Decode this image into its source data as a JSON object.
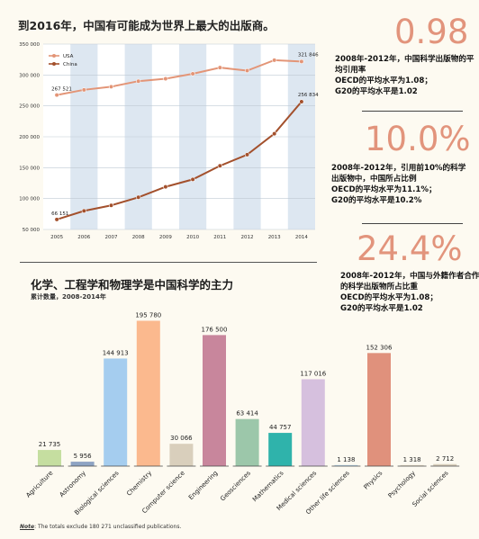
{
  "top_title": "到2016年，中国有可能成为世界上最大的出版商。",
  "stats": [
    {
      "value": "0.98",
      "desc": "2008年-2012年，中国科学出版物的平均引用率\nOECD的平均水平为1.08；\nG20的平均水平是1.02"
    },
    {
      "value": "10.0%",
      "desc": "2008年-2012年，引用前10%的科学出版物中，中国所占比例\nOECD的平均水平为11.1%；\nG20的平均水平是10.2%"
    },
    {
      "value": "24.4%",
      "desc": "2008年-2012年，中国与外籍作者合作的科学出版物所占比重\nOECD的平均水平为1.08；\nG20的平均水平是1.02"
    }
  ],
  "bar_title": "化学、工程学和物理学是中国科学的主力",
  "bar_subtitle": "累计数量，2008-2014年",
  "footnote_label": "Note",
  "footnote_text": ": The totals exclude 180 271 unclassified publications.",
  "chart_data": [
    {
      "type": "line",
      "x": [
        "2005",
        "2006",
        "2007",
        "2008",
        "2009",
        "2010",
        "2011",
        "2012",
        "2013",
        "2014"
      ],
      "ylim": [
        50000,
        350000
      ],
      "y_ticks": [
        "50 000",
        "100 000",
        "150 000",
        "200 000",
        "250 000",
        "300 000",
        "350 000"
      ],
      "legend_position": "top-left",
      "grid": "alternating vertical bands",
      "series": [
        {
          "name": "USA",
          "color": "#e39577",
          "values": [
            267521,
            276000,
            281000,
            290000,
            294000,
            302000,
            312000,
            307000,
            324000,
            321846
          ],
          "start_label": "267 521",
          "end_label": "321 846"
        },
        {
          "name": "China",
          "color": "#a3502c",
          "values": [
            66151,
            80000,
            89000,
            102000,
            119000,
            131000,
            153000,
            171000,
            205000,
            256834
          ],
          "start_label": "66 151",
          "end_label": "256 834"
        }
      ]
    },
    {
      "type": "bar",
      "categories": [
        "Agriculture",
        "Astronomy",
        "Biological sciences",
        "Chemistry",
        "Computer science",
        "Engineering",
        "Geosciences",
        "Mathematics",
        "Medical sciences",
        "Other life sciences",
        "Physics",
        "Psychology",
        "Social sciences"
      ],
      "values": [
        21735,
        5956,
        144913,
        195780,
        30066,
        176500,
        63414,
        44757,
        117016,
        1138,
        152306,
        1318,
        2712
      ],
      "value_labels": [
        "21 735",
        "5 956",
        "144 913",
        "195 780",
        "30 066",
        "176 500",
        "63 414",
        "44 757",
        "117 016",
        "1 138",
        "152 306",
        "1 318",
        "2 712"
      ],
      "colors": [
        "#c5dea0",
        "#8ea3c3",
        "#a5cdef",
        "#fbb98e",
        "#d9cfbc",
        "#c8869c",
        "#9cc7aa",
        "#2fb3ab",
        "#d6c0de",
        "#b7d4e6",
        "#e0917c",
        "#e4d9c7",
        "#d9cfbc"
      ]
    }
  ]
}
